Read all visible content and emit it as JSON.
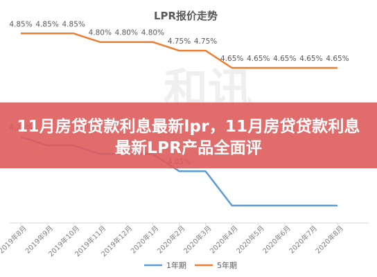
{
  "chart_data": {
    "type": "line",
    "title": "LPR报价走势",
    "categories": [
      "2019年8月",
      "2019年9月",
      "2019年10月",
      "2019年11月",
      "2019年12月",
      "2020年1月",
      "2020年2月",
      "2020年3月",
      "2020年4月",
      "2020年5月",
      "2020年6月",
      "2020年7月",
      "2020年8月"
    ],
    "series": [
      {
        "name": "1年期",
        "color": "#5b9bd5",
        "values": [
          4.25,
          4.2,
          4.2,
          4.15,
          4.15,
          4.15,
          4.05,
          4.05,
          3.85,
          3.85,
          3.85,
          3.85,
          3.85
        ],
        "labels": [
          "4.25%",
          "",
          "",
          "",
          "",
          "",
          "4.05%",
          "",
          "",
          "",
          "",
          "",
          ""
        ]
      },
      {
        "name": "5年期",
        "color": "#ed7d31",
        "values": [
          4.85,
          4.85,
          4.85,
          4.8,
          4.8,
          4.8,
          4.75,
          4.75,
          4.65,
          4.65,
          4.65,
          4.65,
          4.65
        ],
        "labels": [
          "4.85%",
          "4.85%",
          "4.85%",
          "4.80%",
          "4.80%",
          "4.80%",
          "4.75%",
          "4.75%",
          "4.65%",
          "4.65%",
          "4.65%",
          "4.65%",
          "4.65%"
        ]
      }
    ],
    "legend": "bottom",
    "grid": false
  },
  "watermark": "和讯",
  "banner": {
    "text": "11月房贷贷款利息最新lpr，11月房贷贷款利息最新LPR产品全面评"
  }
}
